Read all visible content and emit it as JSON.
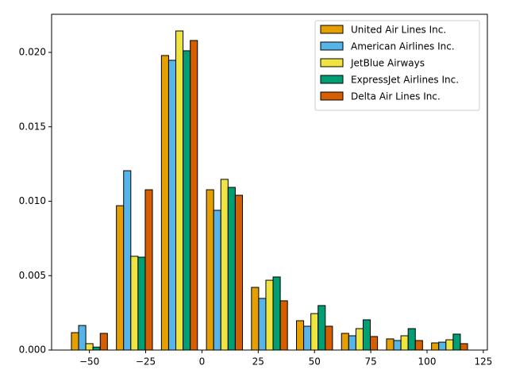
{
  "chart_data": {
    "type": "histogram",
    "bins": [
      -60,
      -40,
      -20,
      0,
      20,
      40,
      60,
      80,
      100,
      120
    ],
    "series": [
      {
        "name": "United Air Lines Inc.",
        "color": "#E69F00",
        "values": [
          0.00117,
          0.0097,
          0.01979,
          0.01077,
          0.00421,
          0.00197,
          0.00112,
          0.00075,
          0.00048
        ]
      },
      {
        "name": "American Airlines Inc.",
        "color": "#56B4E9",
        "values": [
          0.00165,
          0.01205,
          0.01947,
          0.00939,
          0.00347,
          0.0016,
          0.00096,
          0.00064,
          0.00053
        ]
      },
      {
        "name": "JetBlue Airways",
        "color": "#F0E442",
        "values": [
          0.00043,
          0.0063,
          0.02144,
          0.01147,
          0.00469,
          0.00245,
          0.00144,
          0.00096,
          0.00069
        ]
      },
      {
        "name": "ExpressJet Airlines Inc.",
        "color": "#009E73",
        "values": [
          0.0002,
          0.00624,
          0.02011,
          0.01093,
          0.00491,
          0.00299,
          0.00203,
          0.00144,
          0.00107
        ]
      },
      {
        "name": "Delta Air Lines Inc.",
        "color": "#D55E00",
        "values": [
          0.00112,
          0.01077,
          0.0208,
          0.0104,
          0.00331,
          0.0016,
          0.00091,
          0.00064,
          0.00043
        ]
      }
    ],
    "xlim": [
      -66.8,
      126.8
    ],
    "xticks": [
      {
        "value": -50,
        "label": "−50"
      },
      {
        "value": -25,
        "label": "−25"
      },
      0,
      25,
      50,
      75,
      100,
      125
    ],
    "ylim": [
      0,
      0.02256
    ],
    "yticks": [
      {
        "value": 0,
        "label": "0.000"
      },
      {
        "value": 0.005,
        "label": "0.005"
      },
      {
        "value": 0.01,
        "label": "0.010"
      },
      {
        "value": 0.015,
        "label": "0.015"
      },
      {
        "value": 0.02,
        "label": "0.020"
      }
    ],
    "legend": "upper right"
  }
}
